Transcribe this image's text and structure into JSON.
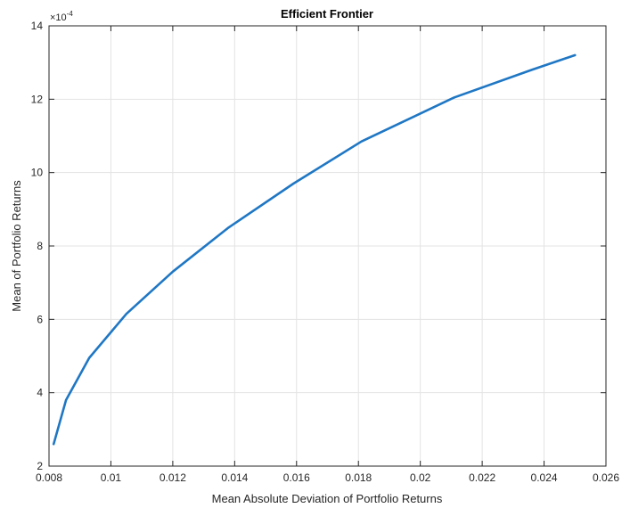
{
  "chart_data": {
    "type": "line",
    "title": "Efficient Frontier",
    "xlabel": "Mean Absolute Deviation of Portfolio Returns",
    "ylabel": "Mean of Portfolio Returns",
    "xlim": [
      0.008,
      0.026
    ],
    "ylim": [
      2,
      14
    ],
    "y_exponent_base": "×10",
    "y_exponent": "-4",
    "xticks": [
      "0.008",
      "0.01",
      "0.012",
      "0.014",
      "0.016",
      "0.018",
      "0.02",
      "0.022",
      "0.024",
      "0.026"
    ],
    "yticks": [
      "2",
      "4",
      "6",
      "8",
      "10",
      "12",
      "14"
    ],
    "grid": true,
    "line_color": "#1f77c4",
    "series": [
      {
        "x": [
          0.00815,
          0.00855,
          0.0093,
          0.0105,
          0.012,
          0.0138,
          0.0159,
          0.0181,
          0.0211,
          0.0236,
          0.025
        ],
        "y": [
          2.6,
          3.8,
          4.95,
          6.15,
          7.3,
          8.5,
          9.7,
          10.85,
          12.05,
          12.8,
          13.2
        ]
      }
    ]
  }
}
